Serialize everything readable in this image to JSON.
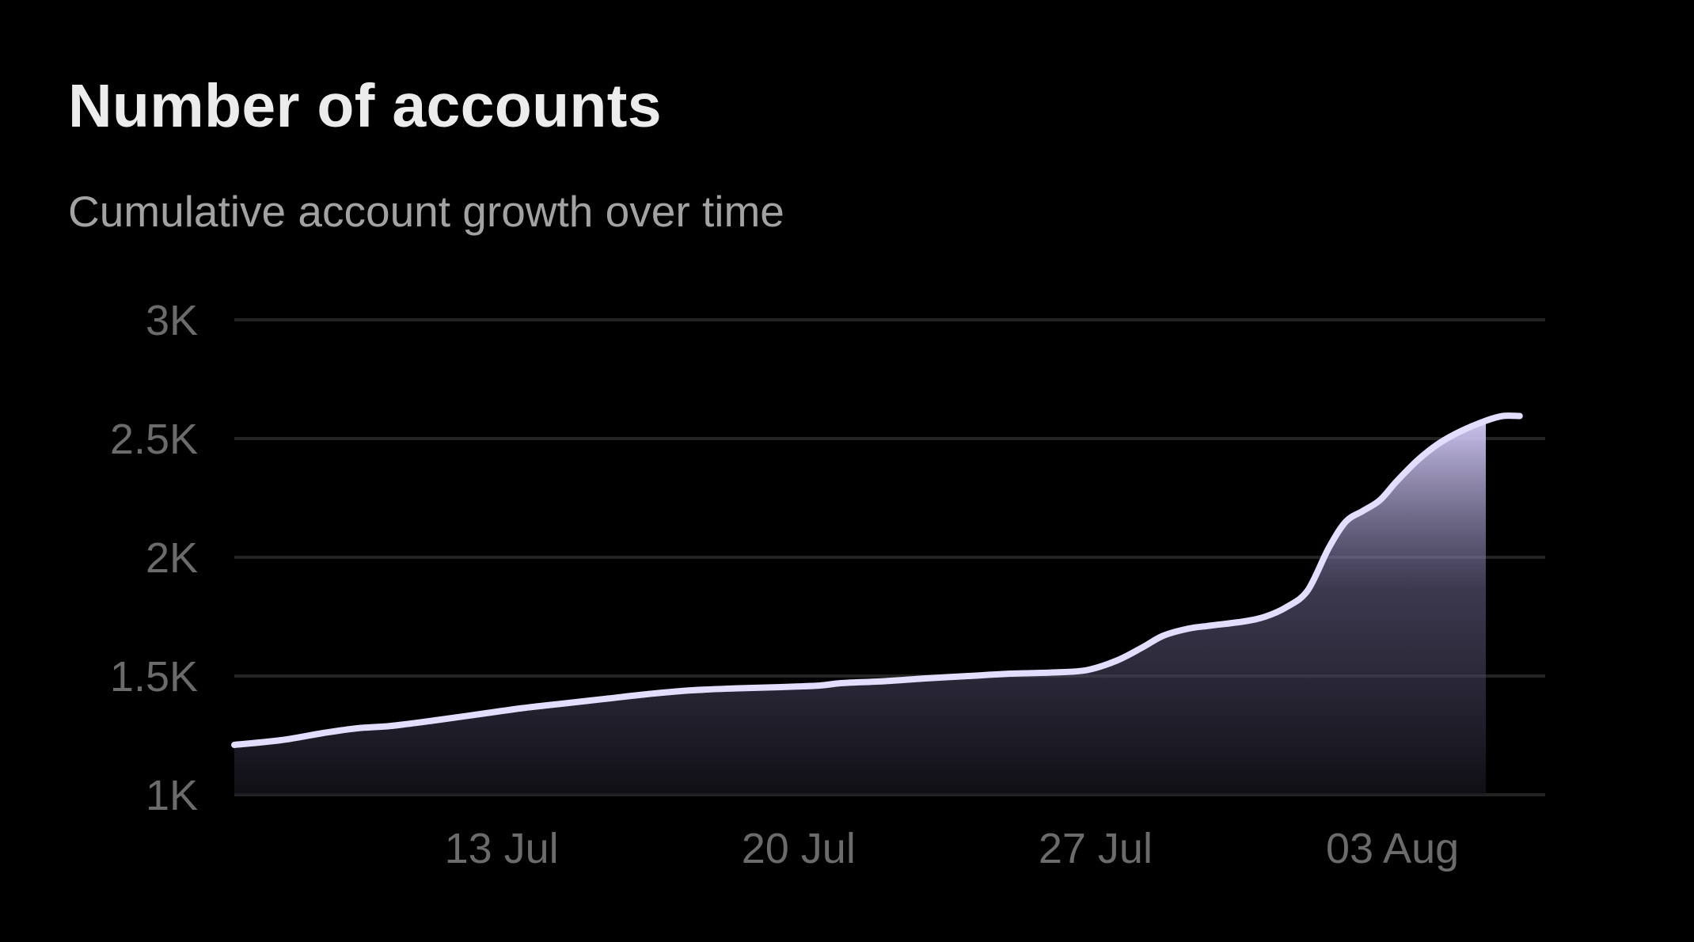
{
  "title": "Number of accounts",
  "subtitle": "Cumulative account growth over time",
  "colors": {
    "background": "#000000",
    "line": "#e3ddff",
    "area_top": "#d6cdfa",
    "gridline": "#232323",
    "tick_text": "#6b6b6b"
  },
  "chart_data": {
    "type": "area",
    "title": "Number of accounts",
    "subtitle": "Cumulative account growth over time",
    "xlabel": "",
    "ylabel": "",
    "x_ticks": [
      {
        "label": "13 Jul",
        "day": 13
      },
      {
        "label": "20 Jul",
        "day": 20
      },
      {
        "label": "27 Jul",
        "day": 27
      },
      {
        "label": "03 Aug",
        "day": 34
      }
    ],
    "y_ticks": [
      {
        "label": "3K",
        "value": 3000
      },
      {
        "label": "2.5K",
        "value": 2500
      },
      {
        "label": "2K",
        "value": 2000
      },
      {
        "label": "1.5K",
        "value": 1500
      },
      {
        "label": "1K",
        "value": 1000
      }
    ],
    "xlim": [
      6.7,
      37.6
    ],
    "ylim": [
      1000,
      3000
    ],
    "grid": true,
    "legend": "none",
    "series": [
      {
        "x": [
          6.7,
          7.8,
          8.8,
          9.6,
          10.4,
          11.5,
          12.5,
          13.5,
          14.5,
          15.5,
          16.5,
          17.5,
          18.5,
          19.5,
          20.5,
          21.0,
          22.0,
          23.0,
          24.0,
          25.0,
          26.0,
          26.8,
          27.5,
          28.1,
          28.6,
          29.2,
          29.7,
          30.5,
          31.0,
          31.5,
          32.0,
          32.5,
          32.9,
          33.3,
          33.7,
          34.1,
          34.6,
          35.1,
          35.6,
          36.2,
          36.6,
          37.0
        ],
        "values": [
          1210,
          1230,
          1260,
          1280,
          1290,
          1315,
          1340,
          1365,
          1385,
          1405,
          1425,
          1440,
          1448,
          1453,
          1460,
          1470,
          1478,
          1490,
          1500,
          1510,
          1515,
          1525,
          1565,
          1620,
          1670,
          1700,
          1712,
          1730,
          1750,
          1790,
          1860,
          2040,
          2150,
          2195,
          2240,
          2320,
          2410,
          2480,
          2530,
          2575,
          2595,
          2595
        ]
      }
    ]
  }
}
